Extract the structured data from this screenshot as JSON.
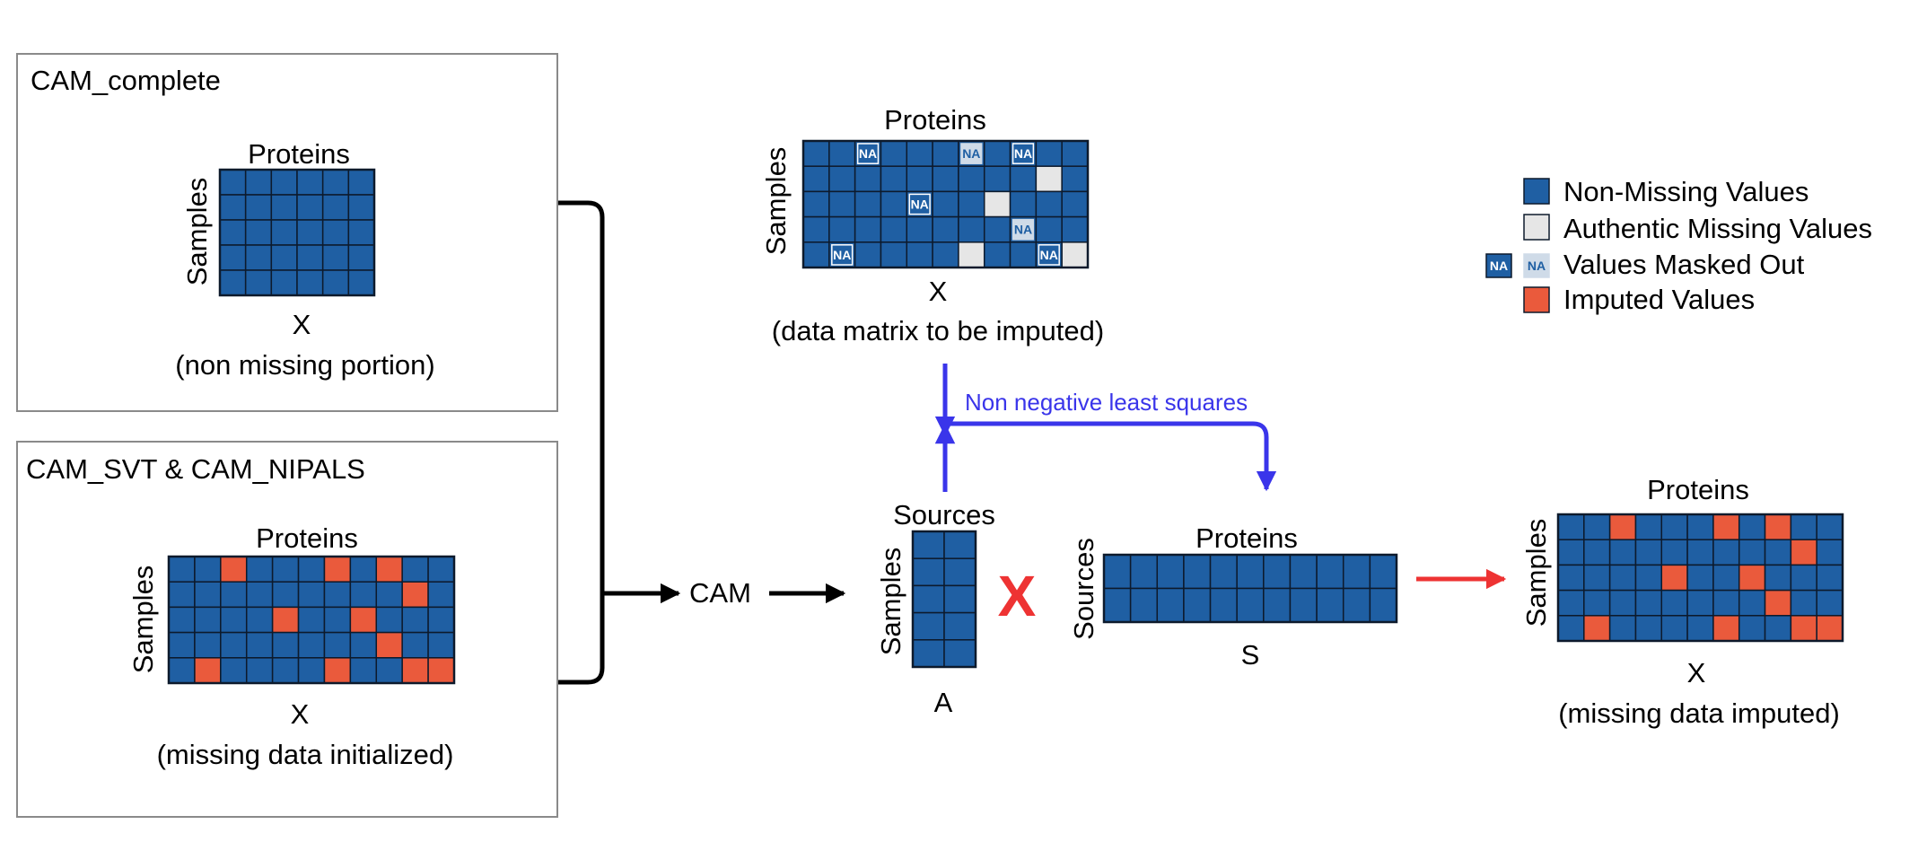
{
  "colors": {
    "non_missing": "#1f5fa3",
    "authentic_missing": "#e6e6e6",
    "imputed": "#ea5a3c",
    "masked_light": "#cfdbe8",
    "grid_line": "#0d1a2c",
    "black": "#000000",
    "blue_arrow": "#3a35ea",
    "red_arrow": "#ee3333",
    "box_border": "#8a8a8a"
  },
  "panel_complete": {
    "title": "CAM_complete",
    "cols_label": "Proteins",
    "rows_label": "Samples",
    "matrix_label": "X",
    "caption": "(non missing portion)"
  },
  "panel_init": {
    "title": "CAM_SVT & CAM_NIPALS",
    "cols_label": "Proteins",
    "rows_label": "Samples",
    "matrix_label": "X",
    "caption": "(missing data initialized)"
  },
  "input_matrix": {
    "cols_label": "Proteins",
    "rows_label": "Samples",
    "matrix_label": "X",
    "caption": "(data matrix to be imputed)"
  },
  "cam_label": "CAM",
  "nnls_label": "Non negative least squares",
  "multiply_symbol": "X",
  "matrix_a": {
    "cols_label": "Sources",
    "rows_label": "Samples",
    "label": "A"
  },
  "matrix_s": {
    "cols_label": "Proteins",
    "rows_label": "Sources",
    "label": "S"
  },
  "output_matrix": {
    "cols_label": "Proteins",
    "rows_label": "Samples",
    "matrix_label": "X",
    "caption": "(missing data imputed)"
  },
  "legend": {
    "items": [
      {
        "label": "Non-Missing Values"
      },
      {
        "label": "Authentic Missing Values"
      },
      {
        "label": "Values Masked Out"
      },
      {
        "label": "Imputed Values"
      }
    ],
    "na_text": "NA"
  }
}
